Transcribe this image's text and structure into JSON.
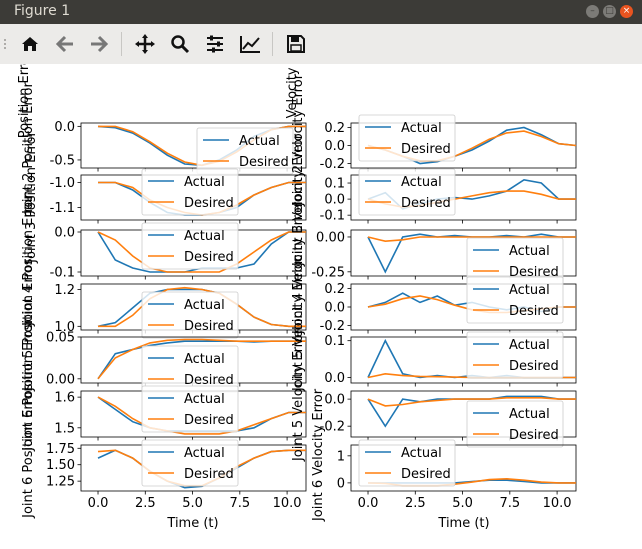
{
  "window": {
    "title": "Figure 1"
  },
  "toolbar": {
    "icons": [
      "home-icon",
      "back-icon",
      "forward-icon",
      "pan-icon",
      "zoom-icon",
      "configure-subplots-icon",
      "edit-axis-icon",
      "save-icon"
    ]
  },
  "figure": {
    "xlabel": "Time (t)",
    "legend": {
      "actual": "Actual",
      "desired": "Desired"
    },
    "colors": {
      "actual": "#1f77b4",
      "desired": "#ff7f0e"
    },
    "xticks": [
      "0.0",
      "2.5",
      "5.0",
      "7.5",
      "10.0"
    ],
    "left_labels": [
      "Joint 1 Position Error",
      "Joint 2 Position Error",
      "Joint 3 Position Error",
      "Joint 4 Position Error",
      "Joint 5 Position Error",
      "Joint 6 Position Error"
    ],
    "right_labels": [
      "Joint 1 Velocity Error",
      "Joint 2 Velocity Error",
      "Joint 3 Velocity Error",
      "Joint 4 Velocity Error",
      "Joint 5 Velocity Error",
      "Joint 6 Velocity Error"
    ]
  },
  "chart_data": [
    {
      "type": "line",
      "title": "",
      "ylabel": "Position Error",
      "yticks": [
        "0.0",
        "-0.5"
      ],
      "ylim": [
        -0.62,
        0.05
      ],
      "series": [
        {
          "name": "Actual",
          "values": [
            0.0,
            -0.02,
            -0.1,
            -0.25,
            -0.43,
            -0.56,
            -0.58,
            -0.5,
            -0.35,
            -0.15,
            -0.05,
            0.0,
            0.0
          ]
        },
        {
          "name": "Desired",
          "values": [
            0.0,
            0.0,
            -0.08,
            -0.23,
            -0.4,
            -0.53,
            -0.58,
            -0.52,
            -0.38,
            -0.2,
            -0.05,
            0.0,
            0.0
          ]
        }
      ]
    },
    {
      "type": "line",
      "title": "",
      "ylabel": "Joint 2 Position Error",
      "yticks": [
        "-1.0",
        "-1.1"
      ],
      "ylim": [
        -1.15,
        -0.97
      ],
      "series": [
        {
          "name": "Actual",
          "values": [
            -1.0,
            -1.0,
            -1.03,
            -1.08,
            -1.12,
            -1.13,
            -1.13,
            -1.12,
            -1.1,
            -1.05,
            -1.02,
            -1.0,
            -1.0
          ]
        },
        {
          "name": "Desired",
          "values": [
            -1.0,
            -1.0,
            -1.02,
            -1.07,
            -1.1,
            -1.12,
            -1.13,
            -1.12,
            -1.09,
            -1.05,
            -1.02,
            -1.0,
            -1.0
          ]
        }
      ]
    },
    {
      "type": "line",
      "title": "",
      "ylabel": "Joint 3 Position Error",
      "yticks": [
        "0.0",
        "-0.1"
      ],
      "ylim": [
        -0.11,
        0.005
      ],
      "series": [
        {
          "name": "Actual",
          "values": [
            0.0,
            -0.07,
            -0.09,
            -0.1,
            -0.1,
            -0.1,
            -0.09,
            -0.09,
            -0.09,
            -0.08,
            -0.03,
            0.0,
            0.0
          ]
        },
        {
          "name": "Desired",
          "values": [
            0.0,
            -0.02,
            -0.06,
            -0.09,
            -0.1,
            -0.1,
            -0.1,
            -0.1,
            -0.08,
            -0.05,
            -0.02,
            0.0,
            0.0
          ]
        }
      ]
    },
    {
      "type": "line",
      "title": "",
      "ylabel": "Joint 4 Position Error",
      "yticks": [
        "1.2",
        "1.0"
      ],
      "ylim": [
        0.98,
        1.23
      ],
      "series": [
        {
          "name": "Actual",
          "values": [
            1.0,
            1.02,
            1.1,
            1.18,
            1.2,
            1.2,
            1.2,
            1.18,
            1.12,
            1.05,
            1.01,
            1.0,
            1.0
          ]
        },
        {
          "name": "Desired",
          "values": [
            1.0,
            1.0,
            1.06,
            1.15,
            1.2,
            1.21,
            1.2,
            1.18,
            1.12,
            1.05,
            1.01,
            1.0,
            1.0
          ]
        }
      ]
    },
    {
      "type": "line",
      "title": "",
      "ylabel": "Joint 5 Position Error",
      "yticks": [
        "0.05",
        "0.00"
      ],
      "ylim": [
        -0.005,
        0.05
      ],
      "series": [
        {
          "name": "Actual",
          "values": [
            0.0,
            0.03,
            0.035,
            0.04,
            0.043,
            0.045,
            0.045,
            0.045,
            0.045,
            0.044,
            0.045,
            0.045,
            0.045
          ]
        },
        {
          "name": "Desired",
          "values": [
            0.0,
            0.025,
            0.035,
            0.043,
            0.046,
            0.047,
            0.047,
            0.046,
            0.045,
            0.045,
            0.045,
            0.045,
            0.045
          ]
        }
      ]
    },
    {
      "type": "line",
      "title": "",
      "ylabel": "Joint 6 Position Error",
      "yticks": [
        "1.6",
        "1.5"
      ],
      "ylim": [
        1.47,
        1.62
      ],
      "series": [
        {
          "name": "Actual",
          "values": [
            1.6,
            1.56,
            1.52,
            1.5,
            1.49,
            1.49,
            1.49,
            1.49,
            1.49,
            1.5,
            1.53,
            1.55,
            1.55
          ]
        },
        {
          "name": "Desired",
          "values": [
            1.6,
            1.57,
            1.53,
            1.5,
            1.49,
            1.48,
            1.48,
            1.48,
            1.49,
            1.51,
            1.53,
            1.55,
            1.55
          ]
        }
      ]
    },
    {
      "type": "line",
      "title": "",
      "ylabel": "Joint 6 Position Error",
      "yticks": [
        "1.75",
        "1.50",
        "1.25"
      ],
      "ylim": [
        1.1,
        1.8
      ],
      "series": [
        {
          "name": "Actual",
          "values": [
            1.6,
            1.72,
            1.6,
            1.4,
            1.25,
            1.15,
            1.17,
            1.3,
            1.45,
            1.6,
            1.7,
            1.72,
            1.72
          ]
        },
        {
          "name": "Desired",
          "values": [
            1.7,
            1.72,
            1.6,
            1.4,
            1.25,
            1.18,
            1.18,
            1.3,
            1.47,
            1.6,
            1.7,
            1.72,
            1.72
          ]
        }
      ]
    },
    {
      "type": "line",
      "title": "",
      "ylabel": "Velocity Error",
      "yticks": [
        "0.2",
        "0.0",
        "-0.2"
      ],
      "ylim": [
        -0.25,
        0.25
      ],
      "series": [
        {
          "name": "Actual",
          "values": [
            0.0,
            -0.05,
            -0.12,
            -0.2,
            -0.18,
            -0.12,
            -0.05,
            0.05,
            0.17,
            0.2,
            0.12,
            0.02,
            0.0
          ]
        },
        {
          "name": "Desired",
          "values": [
            0.0,
            -0.05,
            -0.12,
            -0.17,
            -0.17,
            -0.12,
            -0.03,
            0.07,
            0.14,
            0.16,
            0.1,
            0.02,
            0.0
          ]
        }
      ]
    },
    {
      "type": "line",
      "title": "",
      "ylabel": "Joint 2 Velocity Error",
      "yticks": [
        "0.1",
        "0.0",
        "-0.1"
      ],
      "ylim": [
        -0.13,
        0.15
      ],
      "series": [
        {
          "name": "Actual",
          "values": [
            0.0,
            0.04,
            -0.06,
            -0.03,
            0.0,
            0.01,
            0.0,
            0.02,
            0.05,
            0.12,
            0.1,
            0.0,
            0.0
          ]
        },
        {
          "name": "Desired",
          "values": [
            0.0,
            -0.03,
            -0.05,
            -0.04,
            -0.02,
            0.0,
            0.02,
            0.04,
            0.05,
            0.05,
            0.03,
            0.0,
            0.0
          ]
        }
      ]
    },
    {
      "type": "line",
      "title": "",
      "ylabel": "Joint 3 Velocity Error",
      "yticks": [
        "0.00",
        "-0.25"
      ],
      "ylim": [
        -0.28,
        0.05
      ],
      "series": [
        {
          "name": "Actual",
          "values": [
            0.0,
            -0.25,
            0.0,
            0.02,
            0.0,
            0.01,
            0.0,
            0.0,
            0.01,
            0.0,
            0.02,
            0.0,
            0.0
          ]
        },
        {
          "name": "Desired",
          "values": [
            0.0,
            -0.03,
            -0.02,
            0.0,
            0.0,
            0.0,
            0.0,
            0.0,
            0.0,
            0.0,
            0.0,
            0.0,
            0.0
          ]
        }
      ]
    },
    {
      "type": "line",
      "title": "",
      "ylabel": "Joint 4 Velocity Error",
      "yticks": [
        "0.2",
        "0.0",
        "-0.2"
      ],
      "ylim": [
        -0.25,
        0.25
      ],
      "series": [
        {
          "name": "Actual",
          "values": [
            0.0,
            0.05,
            0.15,
            0.05,
            0.12,
            0.02,
            0.05,
            0.0,
            -0.03,
            0.0,
            -0.05,
            0.0,
            0.0
          ]
        },
        {
          "name": "Desired",
          "values": [
            0.0,
            0.03,
            0.09,
            0.12,
            0.08,
            0.02,
            -0.03,
            -0.06,
            -0.06,
            -0.04,
            -0.02,
            0.0,
            0.0
          ]
        }
      ]
    },
    {
      "type": "line",
      "title": "",
      "ylabel": "Joint 5 Velocity Error",
      "yticks": [
        "0.1",
        "0.0"
      ],
      "ylim": [
        -0.015,
        0.11
      ],
      "series": [
        {
          "name": "Actual",
          "values": [
            0.0,
            0.1,
            0.01,
            0.0,
            0.005,
            0.0,
            0.005,
            0.0,
            0.005,
            0.0,
            0.0,
            0.0,
            0.0
          ]
        },
        {
          "name": "Desired",
          "values": [
            0.0,
            0.01,
            0.005,
            0.003,
            0.002,
            0.001,
            0.0,
            0.0,
            0.0,
            0.0,
            0.0,
            0.0,
            0.0
          ]
        }
      ]
    },
    {
      "type": "line",
      "title": "",
      "ylabel": "Joint 5 Velocity Error",
      "yticks": [
        "0.0",
        "-0.2"
      ],
      "ylim": [
        -0.28,
        0.06
      ],
      "series": [
        {
          "name": "Actual",
          "values": [
            0.0,
            -0.2,
            0.0,
            -0.02,
            0.0,
            0.0,
            0.0,
            0.0,
            0.02,
            0.02,
            0.02,
            0.0,
            0.0
          ]
        },
        {
          "name": "Desired",
          "values": [
            0.0,
            -0.05,
            -0.04,
            -0.02,
            -0.01,
            0.0,
            0.0,
            0.0,
            0.01,
            0.01,
            0.01,
            0.0,
            0.0
          ]
        }
      ]
    },
    {
      "type": "line",
      "title": "",
      "ylabel": "Joint 6 Velocity Error",
      "yticks": [
        "1",
        "0"
      ],
      "ylim": [
        -0.3,
        1.4
      ],
      "series": [
        {
          "name": "Actual",
          "values": [
            0.0,
            0.0,
            0.0,
            0.0,
            0.0,
            0.0,
            0.05,
            0.1,
            0.1,
            0.05,
            0.0,
            0.0,
            0.0
          ]
        },
        {
          "name": "Desired",
          "values": [
            0.0,
            -0.02,
            -0.1,
            -0.1,
            -0.1,
            -0.05,
            0.03,
            0.12,
            0.15,
            0.1,
            0.03,
            0.0,
            0.0
          ]
        }
      ]
    }
  ]
}
